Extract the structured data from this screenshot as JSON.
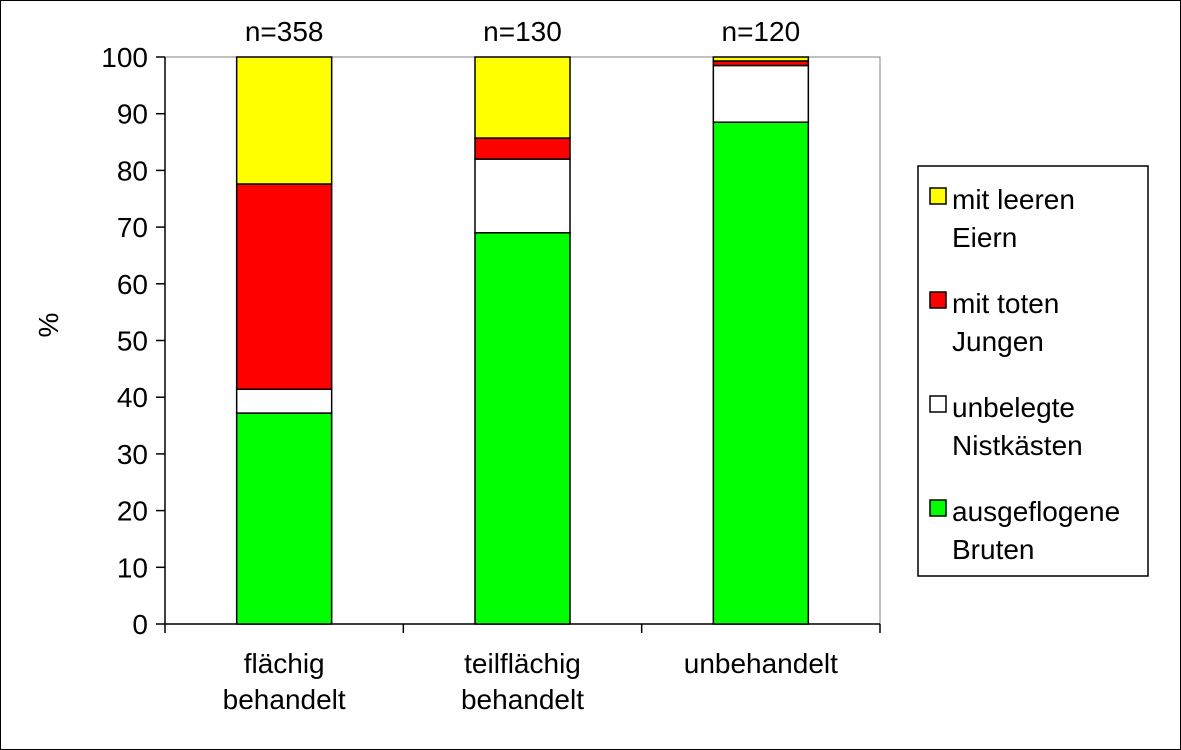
{
  "chart_data": {
    "type": "bar",
    "stacked": true,
    "categories": [
      [
        "flächig",
        "behandelt"
      ],
      [
        "teilflächig",
        "behandelt"
      ],
      [
        "unbehandelt"
      ]
    ],
    "sample_sizes": [
      "n=358",
      "n=130",
      "n=120"
    ],
    "ylabel": "%",
    "ylim": [
      0,
      100
    ],
    "yticks": [
      "0",
      "10",
      "20",
      "30",
      "40",
      "50",
      "60",
      "70",
      "80",
      "90",
      "100"
    ],
    "grid": false,
    "legend_position": "right",
    "series": [
      {
        "name": [
          "ausgeflogene",
          "Bruten"
        ],
        "color": "#00ff00",
        "values": [
          37.2,
          69,
          88.5
        ]
      },
      {
        "name": [
          "unbelegte",
          "Nistkästen"
        ],
        "color": "#ffffff",
        "values": [
          4.2,
          13,
          10
        ]
      },
      {
        "name": [
          "mit toten",
          "Jungen"
        ],
        "color": "#ff0000",
        "values": [
          36.2,
          3.7,
          0.8
        ]
      },
      {
        "name": [
          "mit leeren",
          "Eiern"
        ],
        "color": "#ffff00",
        "values": [
          22.4,
          14.3,
          0.7
        ]
      }
    ]
  }
}
